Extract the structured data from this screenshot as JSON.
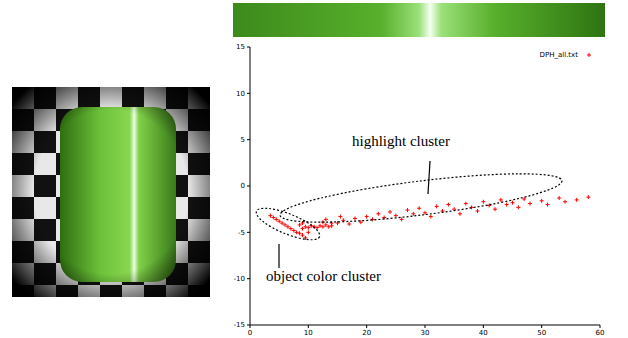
{
  "chart_data": {
    "type": "scatter",
    "legend": "top-right",
    "annotations": [
      "highlight cluster",
      "object color cluster"
    ],
    "xlim": [
      0,
      60
    ],
    "xticks": [
      0,
      10,
      20,
      30,
      40,
      50,
      60
    ],
    "ylim": [
      -15,
      15
    ],
    "yticks": [
      -15,
      -10,
      -5,
      0,
      5,
      10,
      15
    ],
    "series": [
      {
        "name": "DPH_all.txt",
        "color": "#ff0000",
        "marker": "plus",
        "x": [
          3.5,
          4,
          4.5,
          5,
          5.5,
          6,
          6.5,
          7,
          7.5,
          8,
          8.5,
          9,
          9,
          9.5,
          10,
          10.5,
          11,
          11.5,
          12,
          12.5,
          13,
          13.5,
          14,
          9.5,
          10,
          8.5,
          9,
          12.5,
          13,
          14,
          15.5,
          15,
          16,
          17,
          18,
          19,
          20,
          21,
          22,
          23,
          24,
          25,
          26,
          27,
          28,
          29,
          30,
          31,
          32,
          33,
          34,
          35,
          36,
          37,
          38,
          39,
          40,
          41,
          42,
          43,
          44,
          45,
          46,
          47,
          48,
          50,
          51,
          53,
          54,
          56,
          58
        ],
        "values": [
          -3.2,
          -3.4,
          -3.6,
          -3.8,
          -4.0,
          -4.2,
          -4.4,
          -4.6,
          -4.8,
          -5.0,
          -5.1,
          -5.3,
          -4.6,
          -4.4,
          -4.5,
          -4.3,
          -4.4,
          -4.5,
          -4.3,
          -4.4,
          -4.2,
          -4.4,
          -4.3,
          -5.6,
          -5.0,
          -4.2,
          -4.0,
          -3.9,
          -3.6,
          -4.0,
          -3.3,
          -4.0,
          -3.7,
          -4.1,
          -3.5,
          -3.9,
          -3.3,
          -3.6,
          -3.0,
          -3.4,
          -2.8,
          -3.2,
          -3.6,
          -2.6,
          -3.0,
          -2.4,
          -2.9,
          -3.3,
          -2.2,
          -2.7,
          -2.0,
          -2.5,
          -3.0,
          -1.9,
          -2.3,
          -2.7,
          -1.7,
          -2.1,
          -2.5,
          -1.5,
          -2.0,
          -1.8,
          -2.3,
          -1.4,
          -1.9,
          -1.6,
          -2.0,
          -1.3,
          -1.7,
          -1.5,
          -1.2
        ]
      }
    ]
  }
}
